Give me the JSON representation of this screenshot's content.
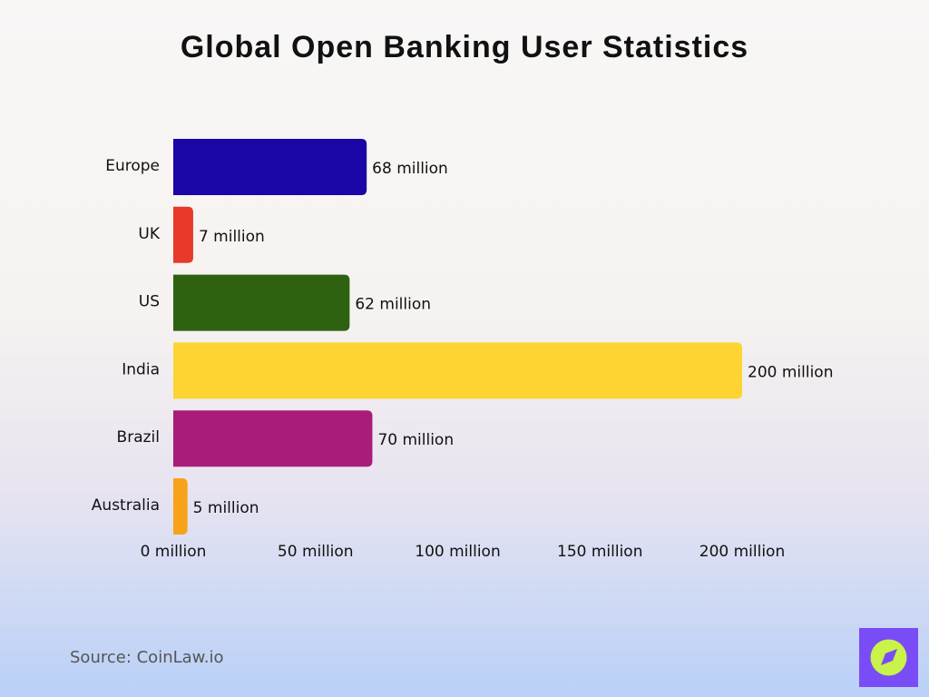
{
  "chart_data": {
    "type": "hbar",
    "title": "Global Open Banking User Statistics",
    "categories": [
      "Europe",
      "UK",
      "US",
      "India",
      "Brazil",
      "Australia"
    ],
    "values": [
      68,
      7,
      62,
      200,
      70,
      5
    ],
    "value_labels": [
      "68 million",
      "7 million",
      "62 million",
      "200 million",
      "70 million",
      "5 million"
    ],
    "colors": [
      "#1a06a6",
      "#e8392a",
      "#2f6210",
      "#fdd431",
      "#a91c79",
      "#f8a21a"
    ],
    "xlim": [
      0,
      200
    ],
    "xticks": [
      {
        "value": 0,
        "label": "0 million"
      },
      {
        "value": 50,
        "label": "50 million"
      },
      {
        "value": 100,
        "label": "100 million"
      },
      {
        "value": 150,
        "label": "150 million"
      },
      {
        "value": 200,
        "label": "200 million"
      }
    ],
    "source": "Source: CoinLaw.io"
  }
}
